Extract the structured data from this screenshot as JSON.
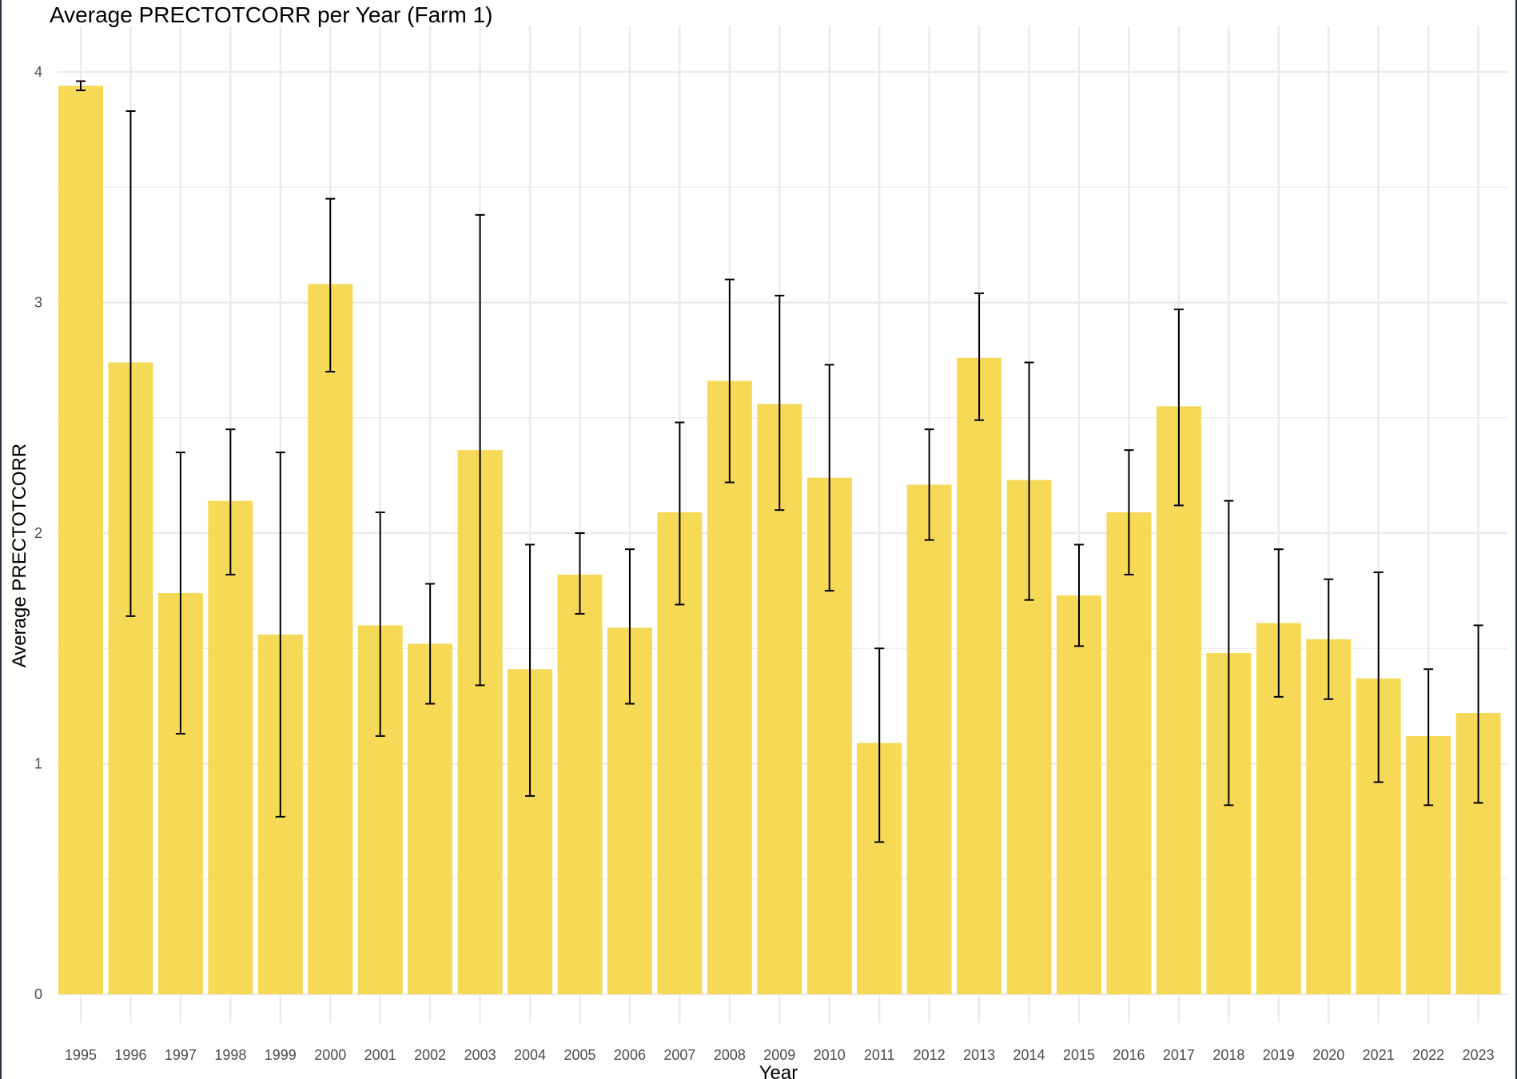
{
  "chart_data": {
    "type": "bar",
    "title": "Average PRECTOTCORR per Year (Farm 1)",
    "xlabel": "Year",
    "ylabel": "Average PRECTOTCORR",
    "ylim": [
      0,
      4.2
    ],
    "yticks": [
      0,
      1,
      2,
      3,
      4
    ],
    "y_tick_labels": [
      "0",
      "1",
      "2",
      "3",
      "4"
    ],
    "grid": true,
    "legend": "none",
    "bar_color": "#f7d958",
    "errorbar_color": "#000000",
    "grid_color": "#ebebeb",
    "categories": [
      "1995",
      "1996",
      "1997",
      "1998",
      "1999",
      "2000",
      "2001",
      "2002",
      "2003",
      "2004",
      "2005",
      "2006",
      "2007",
      "2008",
      "2009",
      "2010",
      "2011",
      "2012",
      "2013",
      "2014",
      "2015",
      "2016",
      "2017",
      "2018",
      "2019",
      "2020",
      "2021",
      "2022",
      "2023"
    ],
    "values": [
      3.94,
      2.74,
      1.74,
      2.14,
      1.56,
      3.08,
      1.6,
      1.52,
      2.36,
      1.41,
      1.82,
      1.59,
      2.09,
      2.66,
      2.56,
      2.24,
      1.09,
      2.21,
      2.76,
      2.23,
      1.73,
      2.09,
      2.55,
      1.48,
      1.61,
      1.54,
      1.37,
      1.12,
      1.22
    ],
    "error_low": [
      3.92,
      1.64,
      1.13,
      1.82,
      0.77,
      2.7,
      1.12,
      1.26,
      1.34,
      0.86,
      1.65,
      1.26,
      1.69,
      2.22,
      2.1,
      1.75,
      0.66,
      1.97,
      2.49,
      1.71,
      1.51,
      1.82,
      2.12,
      0.82,
      1.29,
      1.28,
      0.92,
      0.82,
      0.83
    ],
    "error_high": [
      3.96,
      3.83,
      2.35,
      2.45,
      2.35,
      3.45,
      2.09,
      1.78,
      3.38,
      1.95,
      2.0,
      1.93,
      2.48,
      3.1,
      3.03,
      2.73,
      1.5,
      2.45,
      3.04,
      2.74,
      1.95,
      2.36,
      2.97,
      2.14,
      1.93,
      1.8,
      1.83,
      1.41,
      1.6
    ]
  }
}
